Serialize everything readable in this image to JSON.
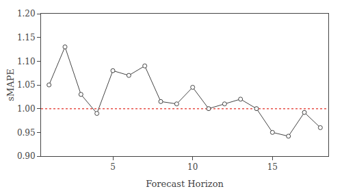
{
  "chart_data": {
    "type": "line",
    "x": [
      1,
      2,
      3,
      4,
      5,
      6,
      7,
      8,
      9,
      10,
      11,
      12,
      13,
      14,
      15,
      16,
      17,
      18
    ],
    "values": [
      1.05,
      1.13,
      1.03,
      0.99,
      1.08,
      1.07,
      1.09,
      1.015,
      1.01,
      1.045,
      1.0,
      1.01,
      1.02,
      1.0,
      0.95,
      0.942,
      0.992,
      0.96
    ],
    "color": "#444444",
    "marker": "open circle",
    "line_style": "solid",
    "reference_line": {
      "y": 1.0,
      "color": "#E8524A",
      "line_style": "dotted"
    },
    "x_label": "Forecast Horizon",
    "y_label": "sMAPE",
    "xlim": [
      0.5,
      18.5
    ],
    "ylim": [
      0.9,
      1.2
    ],
    "xticks": [
      5,
      10,
      15
    ],
    "yticks": [
      {
        "value": 0.9,
        "label": "0.90"
      },
      {
        "value": 0.95,
        "label": "0.95"
      },
      {
        "value": 1.0,
        "label": "1.00"
      },
      {
        "value": 1.05,
        "label": "1.05"
      },
      {
        "value": 1.1,
        "label": "1.10"
      },
      {
        "value": 1.15,
        "label": "1.15"
      },
      {
        "value": 1.2,
        "label": "1.20"
      }
    ],
    "grid": false
  }
}
